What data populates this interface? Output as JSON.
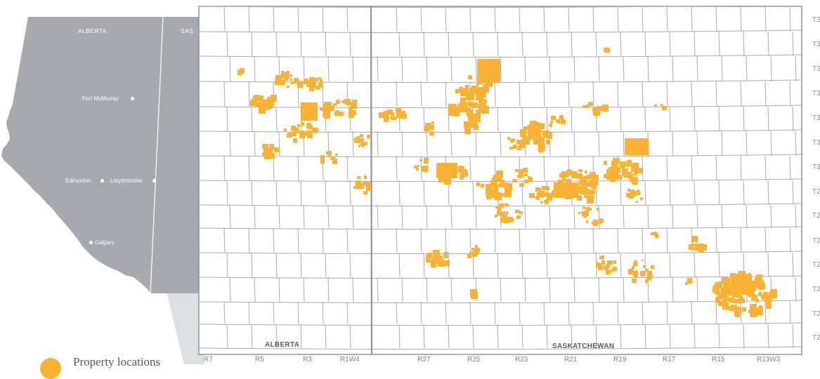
{
  "inset": {
    "labels": {
      "alberta": "ALBERTA",
      "saskatchewan_partial": "SAS"
    },
    "cities": [
      "Fort McMurray",
      "Edmonton",
      "Lloydminster",
      "Calgary"
    ],
    "colors": {
      "land": "#a7a9ae",
      "border": "#ffffff",
      "zoom_wedge": "#cfd1d5"
    }
  },
  "map": {
    "province_labels": {
      "left": "ALBERTA",
      "right": "SASKATCHEWAN"
    },
    "range_labels": [
      "R7",
      "R5",
      "R3",
      "R1W4",
      "R27",
      "R25",
      "R23",
      "R21",
      "R19",
      "R17",
      "R15",
      "R13W3"
    ],
    "township_labels": [
      "T3",
      "T3",
      "T3",
      "T3",
      "T3",
      "T3",
      "T3",
      "T2",
      "T2",
      "T2",
      "T2",
      "T2",
      "T2",
      "T2"
    ],
    "colors": {
      "land_holding": "#f9b233",
      "grid_line": "#a7aab0",
      "meridian": "#8f9298",
      "frame": "#8f9298"
    }
  },
  "legend": {
    "text_partial": "Property locations",
    "swatch_color": "#f9b233"
  }
}
